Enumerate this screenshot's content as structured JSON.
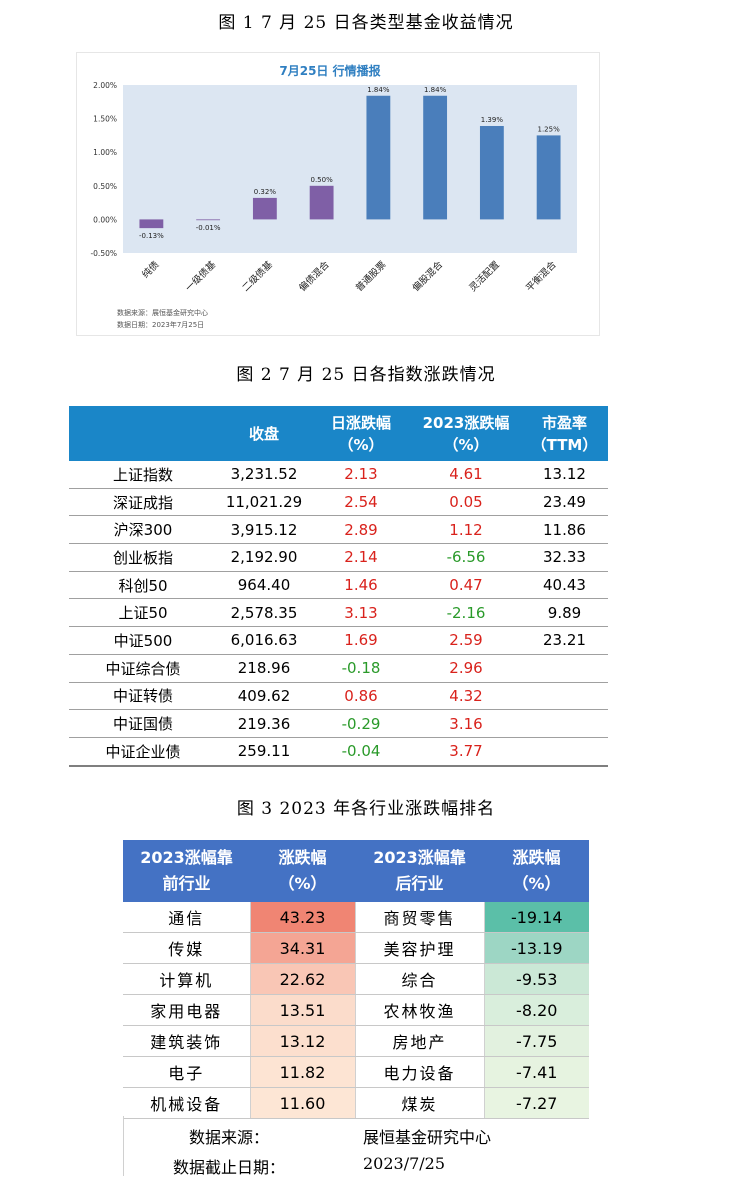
{
  "figure1": {
    "caption": "图 1   7 月 25 日各类型基金收益情况",
    "chart_data": {
      "type": "bar",
      "title": "7月25日  行情播报",
      "categories": [
        "纯债",
        "一级债基",
        "二级债基",
        "偏债混合",
        "普通股票",
        "偏股混合",
        "灵活配置",
        "平衡混合"
      ],
      "values": [
        -0.13,
        -0.01,
        0.32,
        0.5,
        1.84,
        1.84,
        1.39,
        1.25
      ],
      "data_labels": [
        "-0.13%",
        "-0.01%",
        "0.32%",
        "0.50%",
        "1.84%",
        "1.84%",
        "1.39%",
        "1.25%"
      ],
      "ylim": [
        -0.5,
        2.0
      ],
      "yticks": [
        "2.00%",
        "1.50%",
        "1.00%",
        "0.50%",
        "0.00%",
        "-0.50%"
      ],
      "ytick_values": [
        2.0,
        1.5,
        1.0,
        0.5,
        0.0,
        -0.5
      ],
      "grid": false,
      "colors": {
        "plot_background": "#dce6f2",
        "bond_bars": "#7f5fa6",
        "equity_bars": "#4a7ebb",
        "title": "#2f7fc1"
      },
      "bar_color_groups": [
        "bond",
        "bond",
        "bond",
        "bond",
        "equity",
        "equity",
        "equity",
        "equity"
      ]
    },
    "source_note": "数据来源：展恒基金研究中心",
    "date_note": "数据日期：2023年7月25日"
  },
  "figure2": {
    "caption": "图 2   7 月 25 日各指数涨跌情况",
    "headers": [
      "",
      "收盘",
      "日涨跌幅\n（%）",
      "2023涨跌幅\n（%）",
      "市盈率\n（TTM）"
    ],
    "rows": [
      {
        "name": "上证指数",
        "close": "3,231.52",
        "day": "2.13",
        "ytd": "4.61",
        "pe": "13.12",
        "day_sign": "pos",
        "ytd_sign": "pos"
      },
      {
        "name": "深证成指",
        "close": "11,021.29",
        "day": "2.54",
        "ytd": "0.05",
        "pe": "23.49",
        "day_sign": "pos",
        "ytd_sign": "pos"
      },
      {
        "name": "沪深300",
        "close": "3,915.12",
        "day": "2.89",
        "ytd": "1.12",
        "pe": "11.86",
        "day_sign": "pos",
        "ytd_sign": "pos"
      },
      {
        "name": "创业板指",
        "close": "2,192.90",
        "day": "2.14",
        "ytd": "-6.56",
        "pe": "32.33",
        "day_sign": "pos",
        "ytd_sign": "neg"
      },
      {
        "name": "科创50",
        "close": "964.40",
        "day": "1.46",
        "ytd": "0.47",
        "pe": "40.43",
        "day_sign": "pos",
        "ytd_sign": "pos"
      },
      {
        "name": "上证50",
        "close": "2,578.35",
        "day": "3.13",
        "ytd": "-2.16",
        "pe": "9.89",
        "day_sign": "pos",
        "ytd_sign": "neg"
      },
      {
        "name": "中证500",
        "close": "6,016.63",
        "day": "1.69",
        "ytd": "2.59",
        "pe": "23.21",
        "day_sign": "pos",
        "ytd_sign": "pos"
      },
      {
        "name": "中证综合债",
        "close": "218.96",
        "day": "-0.18",
        "ytd": "2.96",
        "pe": "",
        "day_sign": "neg",
        "ytd_sign": "pos"
      },
      {
        "name": "中证转债",
        "close": "409.62",
        "day": "0.86",
        "ytd": "4.32",
        "pe": "",
        "day_sign": "pos",
        "ytd_sign": "pos"
      },
      {
        "name": "中证国债",
        "close": "219.36",
        "day": "-0.29",
        "ytd": "3.16",
        "pe": "",
        "day_sign": "neg",
        "ytd_sign": "pos"
      },
      {
        "name": "中证企业债",
        "close": "259.11",
        "day": "-0.04",
        "ytd": "3.77",
        "pe": "",
        "day_sign": "neg",
        "ytd_sign": "pos"
      }
    ],
    "colors": {
      "header": "#1a86c8",
      "positive": "#d9221c",
      "negative": "#2a9a2a"
    }
  },
  "figure3": {
    "caption": "图 3   2023 年各行业涨跌幅排名",
    "headers": [
      "2023涨幅靠\n前行业",
      "涨跌幅\n（%）",
      "2023涨幅靠\n后行业",
      "涨跌幅\n（%）"
    ],
    "rows": [
      {
        "top": "通信",
        "top_val": "43.23",
        "top_color": "#f08573",
        "bottom": "商贸零售",
        "bottom_val": "-19.14",
        "bottom_color": "#5bbfa8"
      },
      {
        "top": "传媒",
        "top_val": "34.31",
        "top_color": "#f4a594",
        "bottom": "美容护理",
        "bottom_val": "-13.19",
        "bottom_color": "#9dd6c4"
      },
      {
        "top": "计算机",
        "top_val": "22.62",
        "top_color": "#f9c6b5",
        "bottom": "综合",
        "bottom_val": "-9.53",
        "bottom_color": "#cbe8d6"
      },
      {
        "top": "家用电器",
        "top_val": "13.51",
        "top_color": "#fbdccb",
        "bottom": "农林牧渔",
        "bottom_val": "-8.20",
        "bottom_color": "#d9eedc"
      },
      {
        "top": "建筑装饰",
        "top_val": "13.12",
        "top_color": "#fcdfce",
        "bottom": "房地产",
        "bottom_val": "-7.75",
        "bottom_color": "#e2f1df"
      },
      {
        "top": "电子",
        "top_val": "11.82",
        "top_color": "#fde4d3",
        "bottom": "电力设备",
        "bottom_val": "-7.41",
        "bottom_color": "#e6f3e0"
      },
      {
        "top": "机械设备",
        "top_val": "11.60",
        "top_color": "#fde6d5",
        "bottom": "煤炭",
        "bottom_val": "-7.27",
        "bottom_color": "#e8f4e1"
      }
    ],
    "source_label": "数据来源：",
    "source_value": "展恒基金研究中心",
    "date_label": "数据截止日期：",
    "date_value": "2023/7/25",
    "colors": {
      "header": "#4472c4"
    }
  }
}
